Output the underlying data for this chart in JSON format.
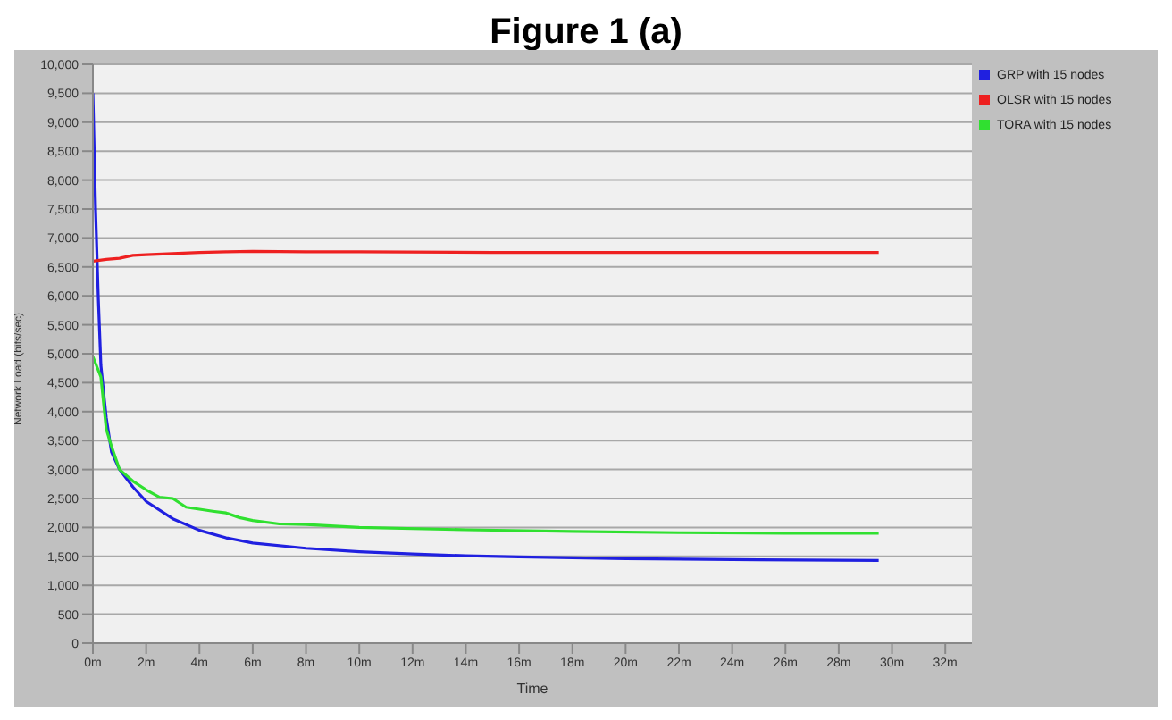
{
  "chart_data": {
    "type": "line",
    "title": "Figure 1 (a)",
    "xlabel": "Time",
    "ylabel": "Network Load (bits/sec)",
    "xlim": [
      0,
      33
    ],
    "xticks": [
      {
        "value": 0,
        "label": "0m"
      },
      {
        "value": 2,
        "label": "2m"
      },
      {
        "value": 4,
        "label": "4m"
      },
      {
        "value": 6,
        "label": "6m"
      },
      {
        "value": 8,
        "label": "8m"
      },
      {
        "value": 10,
        "label": "10m"
      },
      {
        "value": 12,
        "label": "12m"
      },
      {
        "value": 14,
        "label": "14m"
      },
      {
        "value": 16,
        "label": "16m"
      },
      {
        "value": 18,
        "label": "18m"
      },
      {
        "value": 20,
        "label": "20m"
      },
      {
        "value": 22,
        "label": "22m"
      },
      {
        "value": 24,
        "label": "24m"
      },
      {
        "value": 26,
        "label": "26m"
      },
      {
        "value": 28,
        "label": "28m"
      },
      {
        "value": 30,
        "label": "30m"
      },
      {
        "value": 32,
        "label": "32m"
      }
    ],
    "ylim": [
      0,
      10000
    ],
    "yticks": [
      {
        "value": 0,
        "label": "0"
      },
      {
        "value": 500,
        "label": "500"
      },
      {
        "value": 1000,
        "label": "1,000"
      },
      {
        "value": 1500,
        "label": "1,500"
      },
      {
        "value": 2000,
        "label": "2,000"
      },
      {
        "value": 2500,
        "label": "2,500"
      },
      {
        "value": 3000,
        "label": "3,000"
      },
      {
        "value": 3500,
        "label": "3,500"
      },
      {
        "value": 4000,
        "label": "4,000"
      },
      {
        "value": 4500,
        "label": "4,500"
      },
      {
        "value": 5000,
        "label": "5,000"
      },
      {
        "value": 5500,
        "label": "5,500"
      },
      {
        "value": 6000,
        "label": "6,000"
      },
      {
        "value": 6500,
        "label": "6,500"
      },
      {
        "value": 7000,
        "label": "7,000"
      },
      {
        "value": 7500,
        "label": "7,500"
      },
      {
        "value": 8000,
        "label": "8,000"
      },
      {
        "value": 8500,
        "label": "8,500"
      },
      {
        "value": 9000,
        "label": "9,000"
      },
      {
        "value": 9500,
        "label": "9,500"
      },
      {
        "value": 10000,
        "label": "10,000"
      }
    ],
    "grid": "y",
    "legend": "top right",
    "marker": "none",
    "line_style": "solid",
    "series": [
      {
        "name": "GRP with 15 nodes",
        "color": "#2020e0",
        "x": [
          0,
          0.1,
          0.2,
          0.3,
          0.5,
          0.7,
          1,
          1.5,
          2,
          3,
          4,
          5,
          6,
          8,
          10,
          12,
          14,
          16,
          20,
          25,
          29.5
        ],
        "values": [
          9500,
          7500,
          6000,
          4800,
          3900,
          3300,
          3000,
          2700,
          2450,
          2150,
          1950,
          1820,
          1730,
          1640,
          1580,
          1540,
          1510,
          1490,
          1460,
          1440,
          1430
        ]
      },
      {
        "name": "OLSR with 15 nodes",
        "color": "#ee2020",
        "x": [
          0,
          0.5,
          1,
          1.5,
          2,
          3,
          4,
          5,
          6,
          8,
          10,
          15,
          20,
          25,
          29.5
        ],
        "values": [
          6600,
          6630,
          6650,
          6700,
          6710,
          6730,
          6750,
          6760,
          6770,
          6760,
          6760,
          6750,
          6750,
          6750,
          6750
        ]
      },
      {
        "name": "TORA with 15 nodes",
        "color": "#30e030",
        "x": [
          0,
          0.3,
          0.5,
          0.7,
          1,
          1.5,
          2,
          2.5,
          3,
          3.5,
          4.5,
          5,
          5.5,
          6,
          7,
          8,
          10,
          14,
          18,
          22,
          26,
          29.5
        ],
        "values": [
          4950,
          4600,
          3700,
          3400,
          3000,
          2800,
          2650,
          2520,
          2500,
          2350,
          2280,
          2250,
          2170,
          2120,
          2060,
          2050,
          2000,
          1960,
          1930,
          1910,
          1900,
          1900
        ]
      }
    ]
  }
}
